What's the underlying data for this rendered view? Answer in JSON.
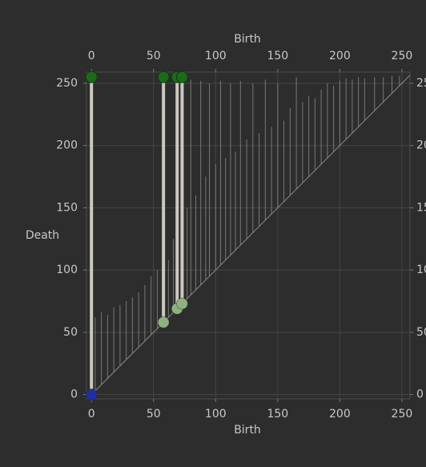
{
  "chart_data": {
    "type": "persistence",
    "x_label": "Birth",
    "y_label": "Death",
    "xlim": [
      -4,
      256.5
    ],
    "ylim": [
      -3.5,
      259
    ],
    "xticks": [
      0,
      50,
      100,
      150,
      200,
      250
    ],
    "yticks": [
      0,
      50,
      100,
      150,
      200,
      250
    ],
    "grid": true,
    "series": [
      {
        "color": "#8a8a86",
        "x": [
          3,
          8,
          13,
          18,
          23,
          28,
          33,
          38,
          43,
          48,
          53,
          62,
          66,
          77,
          80,
          84,
          88,
          92,
          95,
          100,
          104,
          108,
          112,
          116,
          120,
          125,
          130,
          135,
          140,
          145,
          150,
          155,
          160,
          165,
          170,
          175,
          180,
          185,
          190,
          195,
          200,
          205,
          210,
          215,
          220,
          228,
          235,
          242,
          248
        ],
        "values": [
          62,
          66,
          64,
          70,
          72,
          75,
          78,
          82,
          88,
          95,
          100,
          108,
          125,
          150,
          253,
          160,
          252,
          175,
          250,
          185,
          252,
          190,
          250,
          195,
          252,
          205,
          250,
          210,
          253,
          215,
          250,
          220,
          230,
          255,
          235,
          240,
          238,
          245,
          250,
          248,
          252,
          254,
          253,
          255,
          254,
          255,
          255,
          256,
          256
        ]
      },
      {
        "color": "#ddd9cf",
        "death_color": "#1d6a1d",
        "birth_colors": [
          "#1f2fa0",
          "#8fb27e",
          "#8fb27e",
          "#8fb27e"
        ],
        "x": [
          0,
          58,
          69,
          73
        ],
        "values": [
          255,
          255,
          255,
          255
        ]
      }
    ]
  }
}
